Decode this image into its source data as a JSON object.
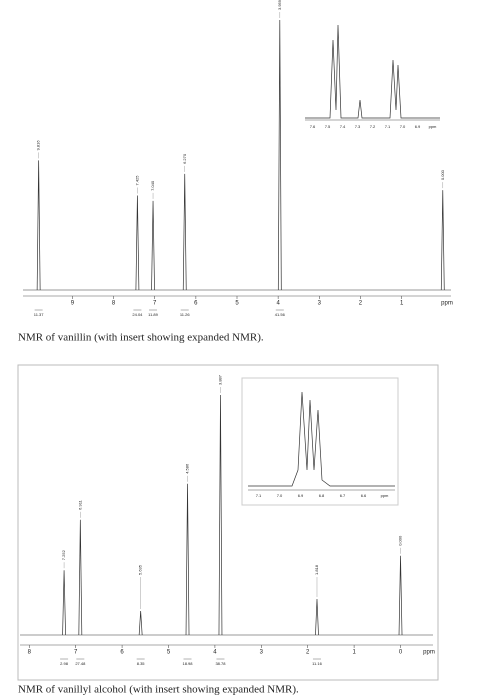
{
  "figures": [
    {
      "caption": "NMR of vanillin (with insert showing expanded NMR).",
      "x_label": "ppm",
      "xlim": [
        10.2,
        -0.2
      ],
      "xticks": [
        9,
        8,
        7,
        6,
        5,
        4,
        3,
        2,
        1
      ],
      "peaks": [
        {
          "ppm": 9.82,
          "height": 48,
          "label": "9.816",
          "integral": "11.37"
        },
        {
          "ppm": 7.42,
          "height": 35,
          "label": "7.425",
          "integral": "24.04"
        },
        {
          "ppm": 7.04,
          "height": 33,
          "label": "7.040",
          "integral": "11.89"
        },
        {
          "ppm": 6.27,
          "height": 43,
          "label": "6.270",
          "integral": "11.26"
        },
        {
          "ppm": 3.96,
          "height": 100,
          "label": "3.959",
          "integral": "41.56"
        },
        {
          "ppm": 0,
          "height": 37,
          "label": "0.000"
        }
      ],
      "inset_ticks": [
        "7.6",
        "7.5",
        "7.4",
        "7.3",
        "7.2",
        "7.1",
        "7.0",
        "6.9",
        "ppm"
      ]
    },
    {
      "caption": "NMR of vanillyl alcohol (with insert showing expanded NMR).",
      "x_label": "ppm",
      "xlim": [
        8.2,
        -0.7
      ],
      "xticks": [
        8,
        7,
        6,
        5,
        4,
        3,
        2,
        1,
        0
      ],
      "peaks": [
        {
          "ppm": 7.25,
          "height": 27,
          "label": "7.252",
          "integral": "2.98"
        },
        {
          "ppm": 6.9,
          "height": 48,
          "label": "6.911",
          "integral": "27.48"
        },
        {
          "ppm": 5.6,
          "height": 10,
          "label": "5.635",
          "integral": "8.35"
        },
        {
          "ppm": 4.59,
          "height": 63,
          "label": "4.586",
          "integral": "18.98"
        },
        {
          "ppm": 3.88,
          "height": 100,
          "label": "3.887",
          "integral": "38.78"
        },
        {
          "ppm": 1.8,
          "height": 15,
          "label": "1.818",
          "integral": "11.16"
        },
        {
          "ppm": 0,
          "height": 33,
          "label": "0.000"
        }
      ],
      "inset_ticks": [
        "7.1",
        "7.0",
        "6.9",
        "6.8",
        "6.7",
        "6.6",
        "ppm"
      ]
    }
  ]
}
